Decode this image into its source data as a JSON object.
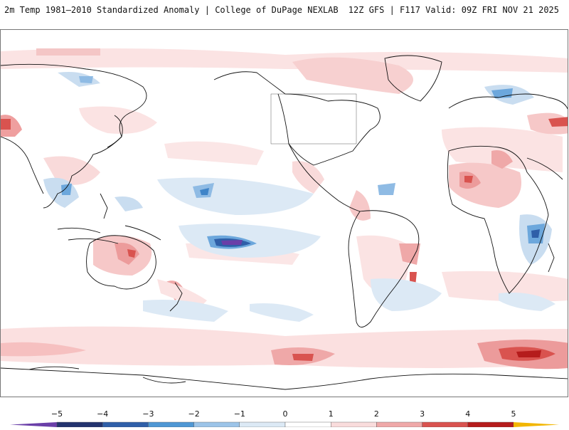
{
  "header": {
    "title_left": "2m Temp 1981–2010 Standardized Anomaly | College of DuPage NEXLAB",
    "title_right": "12Z GFS | F117 Valid: 09Z FRI NOV 21 2025"
  },
  "map": {
    "variable": "2m temperature standardized anomaly",
    "projection": "global cylindrical, Pacific-centered"
  },
  "legend": {
    "ticks": [
      "−5",
      "−4",
      "−3",
      "−2",
      "−1",
      "0",
      "1",
      "2",
      "3",
      "4",
      "5"
    ],
    "colors": [
      "#6a3fa8",
      "#23336e",
      "#2f5fa8",
      "#4e97d4",
      "#9cc4e8",
      "#dce9f5",
      "#ffffff",
      "#f9dcdc",
      "#efa8a8",
      "#d9534f",
      "#b51c1c",
      "#7a0a0a",
      "#f2b600"
    ]
  }
}
